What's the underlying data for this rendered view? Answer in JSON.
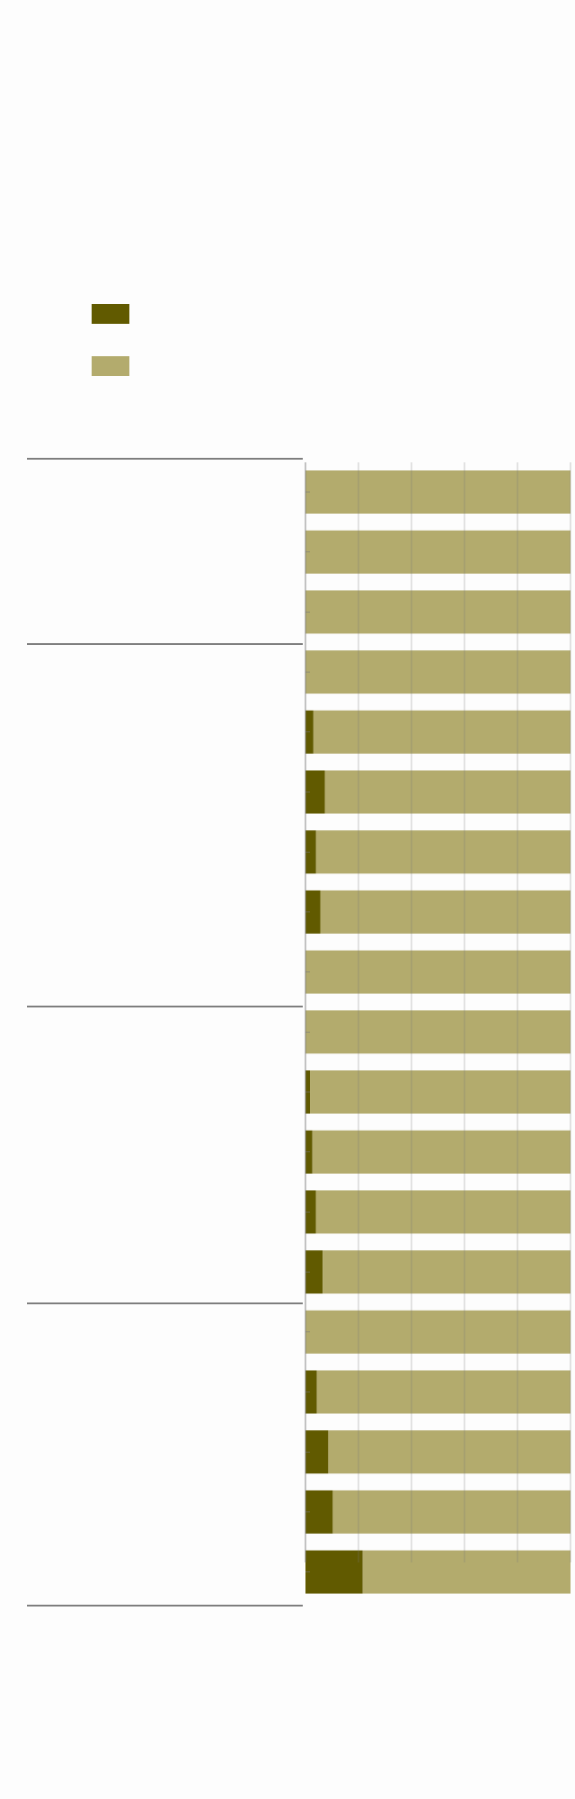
{
  "chart_data": {
    "type": "stacked-barh",
    "categories": [
      null,
      null,
      null,
      null,
      null,
      null,
      null,
      null,
      null,
      null,
      null,
      null,
      null,
      null,
      null,
      null,
      null,
      null,
      null
    ],
    "series": [
      {
        "color": "#615a00",
        "values": [
          0,
          0,
          0,
          0,
          3,
          7.3,
          4,
          5.6,
          0,
          0,
          1.7,
          2.6,
          3.9,
          6.5,
          0,
          4.3,
          8.6,
          10.3,
          21.6
        ]
      },
      {
        "color": "#b3ab6d",
        "values": [
          100,
          100,
          100,
          100,
          97,
          92.7,
          96,
          94.4,
          100,
          100,
          98.3,
          97.4,
          96.1,
          93.5,
          100,
          95.7,
          91.4,
          89.7,
          78.4
        ]
      }
    ],
    "xlim": [
      0,
      100
    ],
    "xticks": [
      0,
      20,
      40,
      60,
      80,
      100
    ],
    "grid": true
  }
}
